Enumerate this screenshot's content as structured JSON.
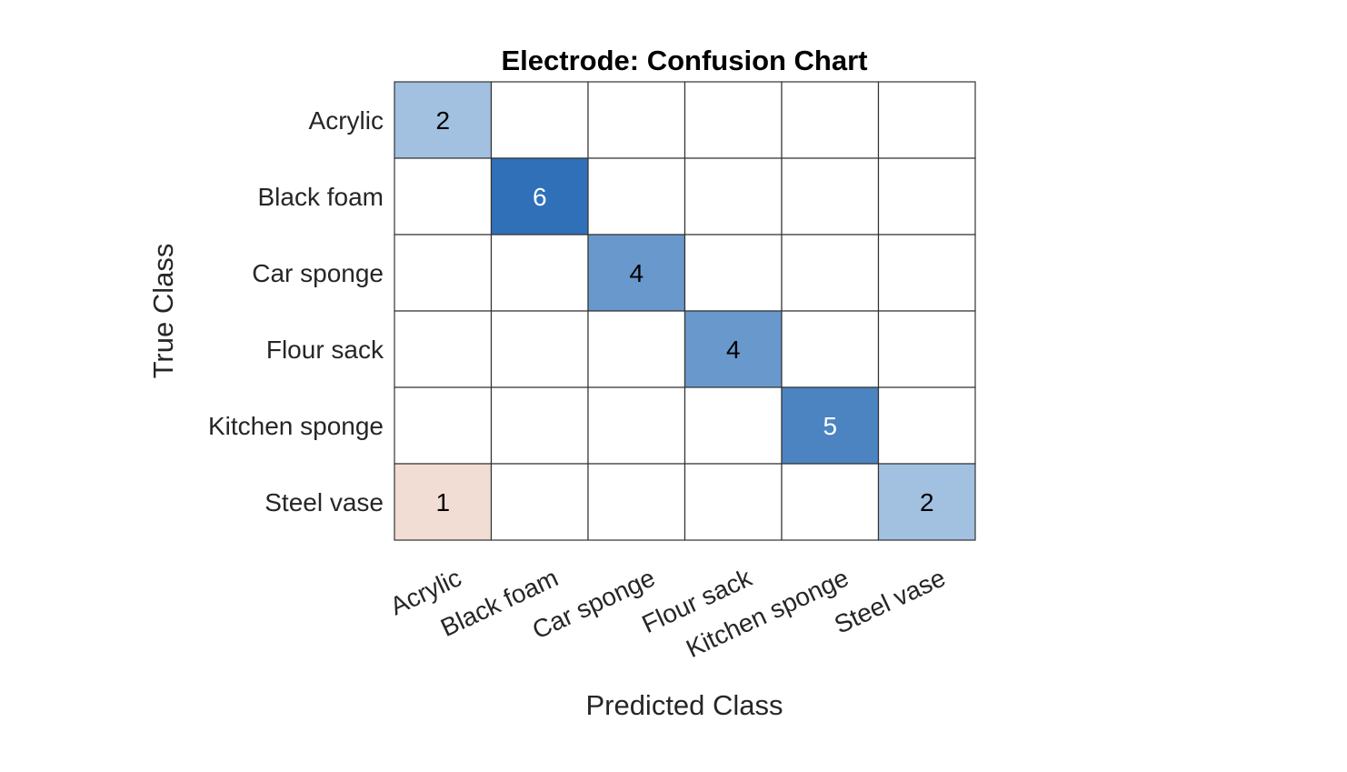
{
  "chart_data": {
    "type": "heatmap",
    "title": "Electrode: Confusion Chart",
    "xlabel": "Predicted Class",
    "ylabel": "True Class",
    "classes": [
      "Acrylic",
      "Black foam",
      "Car sponge",
      "Flour sack",
      "Kitchen sponge",
      "Steel vase"
    ],
    "matrix": [
      [
        2,
        0,
        0,
        0,
        0,
        0
      ],
      [
        0,
        6,
        0,
        0,
        0,
        0
      ],
      [
        0,
        0,
        4,
        0,
        0,
        0
      ],
      [
        0,
        0,
        0,
        4,
        0,
        0
      ],
      [
        0,
        0,
        0,
        0,
        5,
        0
      ],
      [
        1,
        0,
        0,
        0,
        0,
        2
      ]
    ],
    "colors": {
      "correct_scale": [
        "#aecbe4",
        "#6a9fd0",
        "#4886c6",
        "#2f70b8"
      ],
      "incorrect_scale": [
        "#f2ddd4"
      ],
      "grid": "#333333",
      "text_dark": "#000000",
      "text_light": "#ffffff"
    }
  }
}
